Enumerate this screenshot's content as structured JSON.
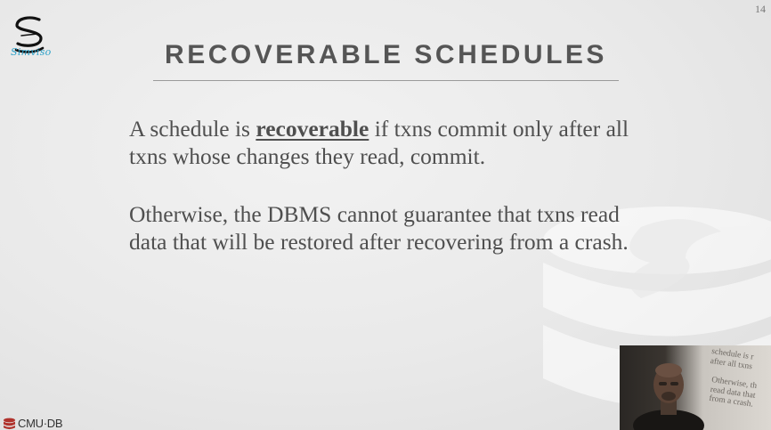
{
  "slide": {
    "page_number": "14",
    "title": "RECOVERABLE SCHEDULES",
    "paragraph1": {
      "before": "A schedule is ",
      "keyword": "recoverable",
      "after": " if txns commit only after all txns whose changes they read, commit."
    },
    "paragraph2": "Otherwise, the DBMS cannot guarantee that txns read data that will be restored after recovering from a crash."
  },
  "logo": {
    "text": "Simviso",
    "icon": "simviso-s-logo",
    "color": "#2aa0c8"
  },
  "footer": {
    "logo_text": "CMU·DB",
    "icon": "database-icon",
    "icon_color": "#b0322c"
  },
  "webcam": {
    "reflection_line1": "schedule is r\nafter all txns",
    "reflection_line2": "Otherwise, th\nread data that\nfrom a crash."
  }
}
